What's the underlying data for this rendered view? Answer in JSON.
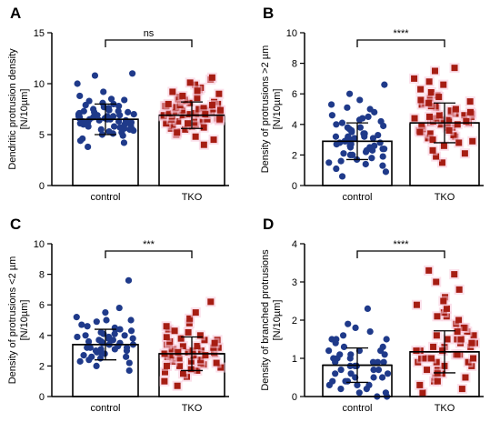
{
  "chart_data": [
    {
      "type": "bar",
      "panel": "A",
      "categories": [
        "control",
        "TKO"
      ],
      "values": [
        6.5,
        6.9
      ],
      "errors": [
        1.5,
        1.3
      ],
      "ylabel": "Dendritic protrusion density",
      "ylabel2": "[N/10µm]",
      "ylim": [
        0,
        15
      ],
      "yticks": [
        0,
        5,
        10,
        15
      ],
      "significance": "ns",
      "points": [
        [
          4.2,
          4.6,
          4.9,
          5.1,
          5.2,
          5.3,
          5.4,
          5.5,
          5.6,
          5.6,
          5.7,
          5.8,
          5.8,
          5.9,
          6.0,
          6.0,
          6.1,
          6.1,
          6.2,
          6.2,
          6.3,
          6.3,
          6.4,
          6.4,
          6.5,
          6.5,
          6.5,
          6.6,
          6.6,
          6.7,
          6.7,
          6.8,
          6.8,
          6.9,
          6.9,
          7.0,
          7.0,
          7.1,
          7.2,
          7.2,
          7.3,
          7.4,
          7.5,
          7.6,
          7.7,
          7.8,
          8.0,
          8.1,
          8.3,
          8.5,
          8.8,
          9.2,
          10.0,
          10.8,
          11.0,
          3.8,
          4.4,
          5.0,
          5.5,
          6.2,
          6.8,
          7.3,
          7.9,
          8.4
        ],
        [
          4.0,
          4.5,
          4.8,
          5.0,
          5.3,
          5.5,
          5.6,
          5.8,
          5.9,
          6.0,
          6.1,
          6.2,
          6.3,
          6.3,
          6.4,
          6.5,
          6.5,
          6.6,
          6.6,
          6.7,
          6.7,
          6.8,
          6.8,
          6.9,
          6.9,
          7.0,
          7.0,
          7.0,
          7.1,
          7.1,
          7.2,
          7.2,
          7.3,
          7.3,
          7.4,
          7.4,
          7.5,
          7.5,
          7.6,
          7.6,
          7.7,
          7.8,
          7.8,
          7.9,
          8.0,
          8.0,
          8.1,
          8.2,
          8.3,
          8.4,
          8.5,
          8.7,
          8.8,
          9.0,
          9.2,
          9.4,
          9.6,
          9.9,
          10.1,
          10.4,
          10.6,
          5.2,
          5.7,
          6.1,
          6.5,
          7.0,
          7.4,
          7.9,
          8.6,
          9.3
        ]
      ]
    },
    {
      "type": "bar",
      "panel": "B",
      "categories": [
        "control",
        "TKO"
      ],
      "values": [
        2.9,
        4.1
      ],
      "errors": [
        1.2,
        1.3
      ],
      "ylabel": "Density of protrusions >2 µm",
      "ylabel2": "[N/10µm]",
      "ylim": [
        0,
        10
      ],
      "yticks": [
        0,
        2,
        4,
        6,
        8,
        10
      ],
      "significance": "****",
      "points": [
        [
          0.6,
          0.9,
          1.1,
          1.3,
          1.5,
          1.6,
          1.7,
          1.8,
          1.9,
          2.0,
          2.1,
          2.2,
          2.3,
          2.3,
          2.4,
          2.5,
          2.5,
          2.6,
          2.7,
          2.7,
          2.8,
          2.8,
          2.9,
          2.9,
          3.0,
          3.0,
          3.1,
          3.1,
          3.2,
          3.2,
          3.3,
          3.4,
          3.4,
          3.5,
          3.6,
          3.7,
          3.8,
          3.9,
          4.0,
          4.1,
          4.2,
          4.3,
          4.5,
          4.6,
          4.8,
          5.0,
          5.3,
          5.6,
          6.0,
          6.6,
          1.4,
          2.0,
          2.6,
          3.2,
          3.8,
          4.4,
          5.1,
          2.4
        ],
        [
          1.5,
          1.9,
          2.3,
          2.6,
          2.9,
          3.1,
          3.2,
          3.3,
          3.4,
          3.5,
          3.6,
          3.7,
          3.8,
          3.8,
          3.9,
          4.0,
          4.0,
          4.1,
          4.1,
          4.2,
          4.2,
          4.3,
          4.3,
          4.4,
          4.4,
          4.5,
          4.5,
          4.6,
          4.7,
          4.7,
          4.8,
          4.9,
          5.0,
          5.1,
          5.2,
          5.3,
          5.4,
          5.5,
          5.6,
          5.7,
          5.9,
          6.1,
          6.3,
          6.6,
          7.0,
          7.5,
          2.1,
          2.8,
          3.5,
          4.0,
          4.6,
          5.2,
          5.8,
          6.8,
          3.0,
          3.6,
          4.2,
          4.8,
          5.4,
          7.7
        ]
      ]
    },
    {
      "type": "bar",
      "panel": "C",
      "categories": [
        "control",
        "TKO"
      ],
      "values": [
        3.4,
        2.8
      ],
      "errors": [
        1.0,
        1.1
      ],
      "ylabel": "Density of protrusions <2 µm",
      "ylabel2": "[N/10µm]",
      "ylim": [
        0,
        10
      ],
      "yticks": [
        0,
        2,
        4,
        6,
        8,
        10
      ],
      "significance": "***",
      "points": [
        [
          1.7,
          2.0,
          2.2,
          2.4,
          2.5,
          2.6,
          2.7,
          2.8,
          2.9,
          3.0,
          3.0,
          3.1,
          3.1,
          3.2,
          3.2,
          3.3,
          3.3,
          3.4,
          3.4,
          3.5,
          3.5,
          3.6,
          3.6,
          3.7,
          3.7,
          3.8,
          3.8,
          3.9,
          4.0,
          4.0,
          4.1,
          4.2,
          4.3,
          4.4,
          4.5,
          4.6,
          4.7,
          4.9,
          5.0,
          5.2,
          5.5,
          5.8,
          7.6,
          2.3,
          2.9,
          3.4,
          3.9,
          4.4,
          5.0,
          2.6,
          3.2,
          4.1
        ],
        [
          0.7,
          1.0,
          1.3,
          1.5,
          1.7,
          1.8,
          1.9,
          2.0,
          2.1,
          2.2,
          2.3,
          2.3,
          2.4,
          2.5,
          2.5,
          2.6,
          2.6,
          2.7,
          2.7,
          2.8,
          2.8,
          2.9,
          2.9,
          3.0,
          3.0,
          3.1,
          3.1,
          3.2,
          3.3,
          3.3,
          3.4,
          3.5,
          3.6,
          3.7,
          3.8,
          3.9,
          4.0,
          4.2,
          4.4,
          4.6,
          4.8,
          5.1,
          5.5,
          6.2,
          1.6,
          2.2,
          2.7,
          3.2,
          3.7,
          4.3,
          2.0,
          2.9,
          3.5
        ]
      ]
    },
    {
      "type": "bar",
      "panel": "D",
      "categories": [
        "control",
        "TKO"
      ],
      "values": [
        0.82,
        1.17
      ],
      "errors": [
        0.45,
        0.55
      ],
      "ylabel": "Density of branched protrusions",
      "ylabel2": "[N/10µm]",
      "ylim": [
        0,
        4
      ],
      "yticks": [
        0,
        1,
        2,
        3,
        4
      ],
      "significance": "****",
      "points": [
        [
          0.0,
          0.0,
          0.1,
          0.1,
          0.2,
          0.2,
          0.3,
          0.3,
          0.4,
          0.4,
          0.5,
          0.5,
          0.5,
          0.6,
          0.6,
          0.7,
          0.7,
          0.7,
          0.8,
          0.8,
          0.8,
          0.9,
          0.9,
          0.9,
          1.0,
          1.0,
          1.0,
          1.1,
          1.1,
          1.2,
          1.2,
          1.3,
          1.3,
          1.4,
          1.5,
          1.5,
          1.6,
          1.7,
          1.8,
          1.9,
          2.3,
          0.3,
          0.6,
          0.9,
          1.2,
          1.5,
          0.4,
          0.8,
          1.1
        ],
        [
          0.1,
          0.2,
          0.3,
          0.4,
          0.5,
          0.5,
          0.6,
          0.7,
          0.7,
          0.8,
          0.8,
          0.9,
          0.9,
          1.0,
          1.0,
          1.0,
          1.1,
          1.1,
          1.1,
          1.2,
          1.2,
          1.2,
          1.3,
          1.3,
          1.3,
          1.4,
          1.4,
          1.5,
          1.5,
          1.6,
          1.6,
          1.7,
          1.8,
          1.8,
          1.9,
          2.0,
          2.1,
          2.2,
          2.3,
          2.4,
          2.6,
          2.8,
          3.0,
          3.2,
          3.3,
          0.6,
          0.9,
          1.2,
          1.5,
          1.8,
          2.1,
          0.4,
          1.0,
          1.4,
          1.7,
          2.5
        ]
      ]
    }
  ],
  "colors": {
    "control": "#1f3a8a",
    "tko": "#a61d12",
    "tko_halo": "#f7c6d8",
    "bar_fill": "#ffffff",
    "axis": "#000000"
  }
}
